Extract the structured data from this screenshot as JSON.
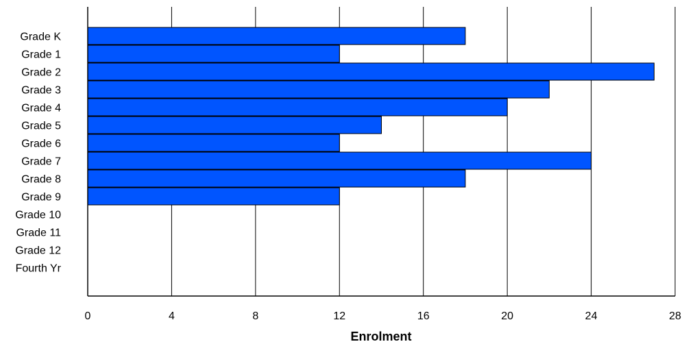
{
  "chart_data": {
    "type": "bar",
    "orientation": "horizontal",
    "categories": [
      "Grade K",
      "Grade 1",
      "Grade 2",
      "Grade 3",
      "Grade 4",
      "Grade 5",
      "Grade 6",
      "Grade 7",
      "Grade 8",
      "Grade 9",
      "Grade 10",
      "Grade 11",
      "Grade 12",
      "Fourth Yr"
    ],
    "values": [
      18,
      12,
      27,
      22,
      20,
      14,
      12,
      24,
      18,
      12,
      0,
      0,
      0,
      0
    ],
    "title": "",
    "xlabel": "Enrolment",
    "ylabel": "",
    "xlim": [
      0,
      28
    ],
    "xticks": [
      "0",
      "4",
      "8",
      "12",
      "16",
      "20",
      "24",
      "28"
    ],
    "grid": "vertical",
    "legend": "none",
    "bar_color": "#0055ff"
  }
}
